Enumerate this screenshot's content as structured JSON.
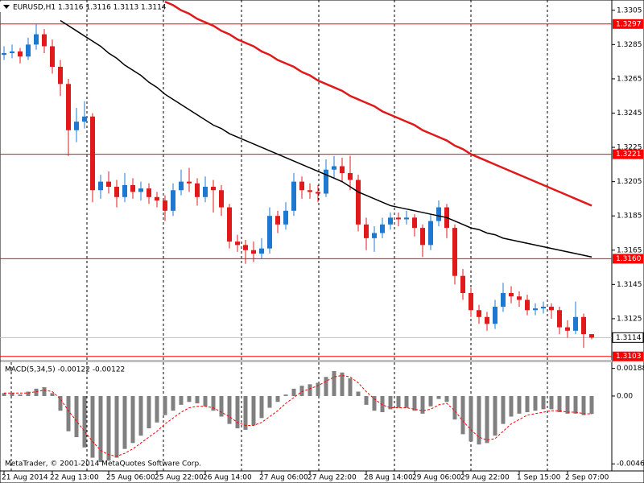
{
  "chart_data": [
    {
      "type": "candlestick",
      "title": "EURUSD,H1  1.3116 1.3116 1.3113 1.3114",
      "categories": [
        "21 Aug 2014",
        null,
        null,
        null,
        null,
        null,
        "22 Aug 13:00",
        null,
        null,
        null,
        null,
        null,
        null,
        "25 Aug 06:00",
        null,
        null,
        null,
        null,
        null,
        "25 Aug 22:00",
        null,
        null,
        null,
        null,
        null,
        "26 Aug 14:00",
        null,
        null,
        null,
        null,
        null,
        null,
        "27 Aug 06:00",
        null,
        null,
        null,
        null,
        null,
        "27 Aug 22:00",
        null,
        null,
        null,
        null,
        null,
        null,
        "28 Aug 14:00",
        null,
        null,
        null,
        null,
        null,
        "29 Aug 06:00",
        null,
        null,
        null,
        null,
        null,
        "29 Aug 22:00",
        null,
        null,
        null,
        null,
        null,
        null,
        "1 Sep 15:00",
        null,
        null,
        null,
        null,
        null,
        "2 Sep 07:00",
        null,
        null,
        null
      ],
      "ohlc": [
        [
          1.3279,
          1.3284,
          1.3276,
          1.328
        ],
        [
          1.328,
          1.3285,
          1.3277,
          1.3281
        ],
        [
          1.3281,
          1.3283,
          1.3274,
          1.3278
        ],
        [
          1.3278,
          1.3289,
          1.3276,
          1.3285
        ],
        [
          1.3285,
          1.3297,
          1.3282,
          1.3291
        ],
        [
          1.3291,
          1.3294,
          1.328,
          1.3284
        ],
        [
          1.3284,
          1.3288,
          1.3268,
          1.3272
        ],
        [
          1.3272,
          1.3276,
          1.3255,
          1.3262
        ],
        [
          1.3262,
          1.3265,
          1.322,
          1.3235
        ],
        [
          1.3235,
          1.3248,
          1.3228,
          1.324
        ],
        [
          1.324,
          1.3252,
          1.3236,
          1.3243
        ],
        [
          1.3243,
          1.3245,
          1.3193,
          1.32
        ],
        [
          1.32,
          1.3209,
          1.3195,
          1.3205
        ],
        [
          1.3205,
          1.3211,
          1.3198,
          1.3202
        ],
        [
          1.3202,
          1.3206,
          1.319,
          1.3196
        ],
        [
          1.3196,
          1.321,
          1.3193,
          1.3203
        ],
        [
          1.3203,
          1.3207,
          1.3195,
          1.3199
        ],
        [
          1.3199,
          1.3205,
          1.3194,
          1.3201
        ],
        [
          1.3201,
          1.3204,
          1.3192,
          1.3196
        ],
        [
          1.3196,
          1.3199,
          1.319,
          1.3194
        ],
        [
          1.3194,
          1.3197,
          1.3182,
          1.3188
        ],
        [
          1.3188,
          1.3204,
          1.3185,
          1.32
        ],
        [
          1.32,
          1.3212,
          1.3197,
          1.3205
        ],
        [
          1.3205,
          1.3213,
          1.3199,
          1.3204
        ],
        [
          1.3204,
          1.3207,
          1.3191,
          1.3196
        ],
        [
          1.3196,
          1.3208,
          1.3193,
          1.3202
        ],
        [
          1.3202,
          1.3206,
          1.3187,
          1.32
        ],
        [
          1.32,
          1.3203,
          1.3185,
          1.319
        ],
        [
          1.319,
          1.3192,
          1.3166,
          1.317
        ],
        [
          1.317,
          1.3174,
          1.3164,
          1.3168
        ],
        [
          1.3168,
          1.3171,
          1.3157,
          1.3165
        ],
        [
          1.3165,
          1.317,
          1.3158,
          1.3163
        ],
        [
          1.3163,
          1.3172,
          1.316,
          1.3166
        ],
        [
          1.3166,
          1.319,
          1.3163,
          1.3185
        ],
        [
          1.3185,
          1.3188,
          1.3175,
          1.318
        ],
        [
          1.318,
          1.3193,
          1.3177,
          1.3188
        ],
        [
          1.3188,
          1.321,
          1.3185,
          1.3205
        ],
        [
          1.3205,
          1.3208,
          1.3195,
          1.32
        ],
        [
          1.32,
          1.3204,
          1.3195,
          1.3199
        ],
        [
          1.3199,
          1.3203,
          1.3193,
          1.3198
        ],
        [
          1.3198,
          1.3218,
          1.3196,
          1.3212
        ],
        [
          1.3212,
          1.322,
          1.3207,
          1.3214
        ],
        [
          1.3214,
          1.3219,
          1.3205,
          1.321
        ],
        [
          1.321,
          1.322,
          1.32,
          1.3206
        ],
        [
          1.3206,
          1.3209,
          1.3176,
          1.318
        ],
        [
          1.318,
          1.3184,
          1.3165,
          1.3172
        ],
        [
          1.3172,
          1.3179,
          1.3164,
          1.3175
        ],
        [
          1.3175,
          1.3184,
          1.3172,
          1.318
        ],
        [
          1.318,
          1.3187,
          1.3177,
          1.3184
        ],
        [
          1.3184,
          1.3187,
          1.3179,
          1.3183
        ],
        [
          1.3183,
          1.3188,
          1.318,
          1.3184
        ],
        [
          1.3184,
          1.3186,
          1.3173,
          1.3178
        ],
        [
          1.3178,
          1.318,
          1.3161,
          1.3168
        ],
        [
          1.3168,
          1.3186,
          1.3165,
          1.3182
        ],
        [
          1.3182,
          1.3194,
          1.3179,
          1.319
        ],
        [
          1.319,
          1.3192,
          1.3172,
          1.3178
        ],
        [
          1.3178,
          1.318,
          1.3145,
          1.315
        ],
        [
          1.315,
          1.3154,
          1.3136,
          1.314
        ],
        [
          1.314,
          1.3143,
          1.3126,
          1.313
        ],
        [
          1.313,
          1.3133,
          1.3122,
          1.3126
        ],
        [
          1.3126,
          1.3129,
          1.3118,
          1.3122
        ],
        [
          1.3122,
          1.3136,
          1.3119,
          1.3132
        ],
        [
          1.3132,
          1.3146,
          1.3129,
          1.314
        ],
        [
          1.314,
          1.3144,
          1.3134,
          1.3138
        ],
        [
          1.3138,
          1.3141,
          1.3132,
          1.3136
        ],
        [
          1.3136,
          1.3139,
          1.3127,
          1.313
        ],
        [
          1.313,
          1.3134,
          1.3127,
          1.3131
        ],
        [
          1.3131,
          1.3135,
          1.3128,
          1.3132
        ],
        [
          1.3132,
          1.3134,
          1.3125,
          1.313
        ],
        [
          1.313,
          1.3132,
          1.3116,
          1.312
        ],
        [
          1.312,
          1.3124,
          1.3114,
          1.3118
        ],
        [
          1.3118,
          1.3135,
          1.3116,
          1.3126
        ],
        [
          1.3126,
          1.3128,
          1.3108,
          1.3116
        ],
        [
          1.3116,
          1.3116,
          1.3113,
          1.3114
        ]
      ],
      "up_color": "#1e78d0",
      "down_color": "#e0191b",
      "series": [
        {
          "color": "#e0191b",
          "values": [
            null,
            null,
            null,
            null,
            null,
            null,
            null,
            null,
            null,
            null,
            null,
            null,
            null,
            null,
            null,
            null,
            null,
            null,
            null,
            null,
            1.331,
            1.3308,
            1.3305,
            1.3303,
            1.33,
            1.3298,
            1.3296,
            1.3293,
            1.3291,
            1.3288,
            1.3286,
            1.3284,
            1.3281,
            1.3279,
            1.3276,
            1.3274,
            1.3272,
            1.3269,
            1.3267,
            1.3264,
            1.3262,
            1.326,
            1.3258,
            1.3255,
            1.3253,
            1.3251,
            1.3249,
            1.3246,
            1.3244,
            1.3242,
            1.324,
            1.3238,
            1.3235,
            1.3233,
            1.3231,
            1.3229,
            1.3226,
            1.3224,
            1.3221,
            1.3219,
            1.3217,
            1.3215,
            1.3213,
            1.3211,
            1.3209,
            1.3207,
            1.3205,
            1.3203,
            1.3201,
            1.3199,
            1.3197,
            1.3195,
            1.3193,
            1.3191
          ]
        },
        {
          "color": "#000000",
          "values": [
            null,
            null,
            null,
            null,
            null,
            null,
            null,
            1.3299,
            1.3296,
            1.3293,
            1.329,
            1.3287,
            1.3284,
            1.328,
            1.3277,
            1.3273,
            1.327,
            1.3267,
            1.3263,
            1.326,
            1.3256,
            1.3253,
            1.325,
            1.3247,
            1.3244,
            1.3241,
            1.3238,
            1.3236,
            1.3233,
            1.3231,
            1.3229,
            1.3227,
            1.3225,
            1.3223,
            1.3221,
            1.3219,
            1.3217,
            1.3215,
            1.3213,
            1.3211,
            1.3209,
            1.3207,
            1.3205,
            1.3202,
            1.3199,
            1.3197,
            1.3195,
            1.3193,
            1.3191,
            1.319,
            1.3189,
            1.3188,
            1.3187,
            1.3186,
            1.3185,
            1.3184,
            1.3182,
            1.318,
            1.3178,
            1.3177,
            1.3175,
            1.3174,
            1.3172,
            1.3171,
            1.317,
            1.3169,
            1.3168,
            1.3167,
            1.3166,
            1.3165,
            1.3164,
            1.3163,
            1.3162,
            1.3161
          ]
        }
      ],
      "levels": [
        1.3297,
        1.3221,
        {
          "value": 1.316,
          "label": "1.3160"
        },
        1.3103
      ],
      "level_color": "#ff0000",
      "last_price": 1.3114,
      "ylim": [
        1.3101,
        1.3311
      ],
      "yticks": [
        1.3305,
        1.3285,
        1.3265,
        1.3245,
        1.3225,
        1.3205,
        1.3185,
        1.3165,
        1.3145,
        1.3125
      ]
    },
    {
      "type": "macd",
      "title": "MACD(5,34,5) -0.00122 -0.00122",
      "annotation": "MetaTrader, © 2001-2014 MetaQuotes Software Corp.",
      "series": [
        {
          "color": "#808080",
          "values": [
            0.0002,
            0.0002,
            0.0001,
            0.0003,
            0.0005,
            0.0006,
            0.0002,
            -0.001,
            -0.0024,
            -0.0028,
            -0.0035,
            -0.0042,
            -0.0045,
            -0.0044,
            -0.0042,
            -0.0036,
            -0.0032,
            -0.0027,
            -0.0022,
            -0.0018,
            -0.0013,
            -0.001,
            -0.0006,
            -0.0004,
            -0.0005,
            -0.0007,
            -0.001,
            -0.0014,
            -0.0019,
            -0.0022,
            -0.0023,
            -0.002,
            -0.0015,
            -0.0008,
            -0.0004,
            0.0001,
            0.0005,
            0.0007,
            0.0008,
            0.0009,
            0.0013,
            0.0017,
            0.0016,
            0.0012,
            0.0003,
            -0.0006,
            -0.001,
            -0.0011,
            -0.0009,
            -0.0008,
            -0.0008,
            -0.001,
            -0.0012,
            -0.0007,
            -0.0002,
            -0.0004,
            -0.0016,
            -0.0026,
            -0.0031,
            -0.0033,
            -0.0032,
            -0.0027,
            -0.0019,
            -0.0014,
            -0.0012,
            -0.0011,
            -0.001,
            -0.0009,
            -0.0009,
            -0.0011,
            -0.0012,
            -0.0012,
            -0.0013,
            -0.00122
          ]
        },
        {
          "color": "#ff0000",
          "values": [
            0.0002,
            0.0002,
            0.0002,
            0.0002,
            0.0003,
            0.0004,
            0.0003,
            -0.0002,
            -0.001,
            -0.0017,
            -0.0024,
            -0.0031,
            -0.0037,
            -0.004,
            -0.0041,
            -0.0039,
            -0.0036,
            -0.0032,
            -0.0028,
            -0.0024,
            -0.0019,
            -0.0015,
            -0.0011,
            -0.0008,
            -0.0007,
            -0.0007,
            -0.0008,
            -0.0011,
            -0.0014,
            -0.0018,
            -0.002,
            -0.002,
            -0.0018,
            -0.0014,
            -0.001,
            -0.0005,
            -0.0001,
            0.0003,
            0.0005,
            0.0007,
            0.001,
            0.0013,
            0.0014,
            0.0013,
            0.0009,
            0.0003,
            -0.0002,
            -0.0006,
            -0.0008,
            -0.0008,
            -0.0008,
            -0.0009,
            -0.001,
            -0.0009,
            -0.0006,
            -0.0005,
            -0.001,
            -0.0017,
            -0.0023,
            -0.0028,
            -0.003,
            -0.0029,
            -0.0024,
            -0.0019,
            -0.0016,
            -0.0013,
            -0.0012,
            -0.0011,
            -0.001,
            -0.001,
            -0.0011,
            -0.0011,
            -0.0012,
            -0.00122
          ]
        }
      ],
      "ylim": [
        -0.0051,
        0.0023
      ],
      "yticks": [
        0.00188,
        {
          "value": 0,
          "label": "0.00"
        },
        -0.00462
      ]
    }
  ]
}
